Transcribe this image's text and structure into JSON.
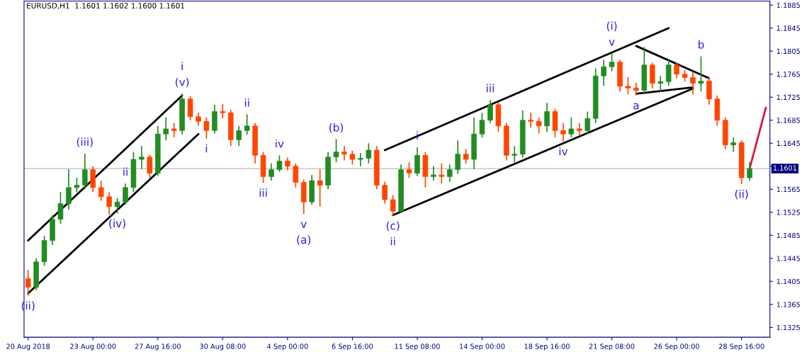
{
  "chart_data": {
    "type": "candlestick",
    "title": "EURUSD,H1  1.1601 1.1602 1.1600 1.1601",
    "categories": [
      "20 Aug 2018",
      null,
      null,
      null,
      null,
      null,
      null,
      null,
      "23 Aug 00:00",
      null,
      null,
      null,
      null,
      null,
      null,
      null,
      "27 Aug 16:00",
      null,
      null,
      null,
      null,
      null,
      null,
      null,
      "30 Aug 08:00",
      null,
      null,
      null,
      null,
      null,
      null,
      null,
      "4 Sep 00:00",
      null,
      null,
      null,
      null,
      null,
      null,
      null,
      "6 Sep 16:00",
      null,
      null,
      null,
      null,
      null,
      null,
      null,
      "11 Sep 08:00",
      null,
      null,
      null,
      null,
      null,
      null,
      null,
      "14 Sep 00:00",
      null,
      null,
      null,
      null,
      null,
      null,
      null,
      "18 Sep 16:00",
      null,
      null,
      null,
      null,
      null,
      null,
      null,
      "21 Sep 08:00",
      null,
      null,
      null,
      null,
      null,
      null,
      null,
      "26 Sep 00:00",
      null,
      null,
      null,
      null,
      null,
      null,
      null,
      "28 Sep 16:00",
      null,
      null,
      null
    ],
    "ohlc": [
      [
        1.141,
        1.1425,
        1.138,
        1.1395
      ],
      [
        1.1395,
        1.1445,
        1.139,
        1.1439
      ],
      [
        1.1439,
        1.1484,
        1.1432,
        1.1476
      ],
      [
        1.1476,
        1.152,
        1.1468,
        1.1513
      ],
      [
        1.1513,
        1.156,
        1.1505,
        1.154
      ],
      [
        1.154,
        1.16,
        1.153,
        1.1568
      ],
      [
        1.1568,
        1.1585,
        1.156,
        1.1572
      ],
      [
        1.1572,
        1.1627,
        1.1565,
        1.1599
      ],
      [
        1.1599,
        1.1605,
        1.156,
        1.1568
      ],
      [
        1.1568,
        1.158,
        1.1545,
        1.1552
      ],
      [
        1.1552,
        1.156,
        1.1521,
        1.1535
      ],
      [
        1.1535,
        1.155,
        1.1523,
        1.1543
      ],
      [
        1.1543,
        1.1575,
        1.1538,
        1.1568
      ],
      [
        1.1568,
        1.163,
        1.156,
        1.1617
      ],
      [
        1.1617,
        1.164,
        1.16,
        1.1621
      ],
      [
        1.1621,
        1.1625,
        1.1585,
        1.1593
      ],
      [
        1.1593,
        1.1675,
        1.1588,
        1.1661
      ],
      [
        1.1661,
        1.169,
        1.165,
        1.167
      ],
      [
        1.167,
        1.168,
        1.1655,
        1.1667
      ],
      [
        1.1667,
        1.1731,
        1.166,
        1.1722
      ],
      [
        1.1722,
        1.1727,
        1.1685,
        1.1691
      ],
      [
        1.1691,
        1.1698,
        1.1675,
        1.1683
      ],
      [
        1.1683,
        1.169,
        1.1653,
        1.1667
      ],
      [
        1.1667,
        1.1712,
        1.1662,
        1.17
      ],
      [
        1.17,
        1.1713,
        1.1688,
        1.1698
      ],
      [
        1.1698,
        1.1703,
        1.164,
        1.1651
      ],
      [
        1.1651,
        1.1675,
        1.164,
        1.1667
      ],
      [
        1.1667,
        1.1695,
        1.166,
        1.1675
      ],
      [
        1.1675,
        1.168,
        1.161,
        1.1624
      ],
      [
        1.1624,
        1.163,
        1.1576,
        1.1587
      ],
      [
        1.1587,
        1.161,
        1.158,
        1.1599
      ],
      [
        1.1599,
        1.1624,
        1.1595,
        1.1614
      ],
      [
        1.1614,
        1.162,
        1.1598,
        1.1605
      ],
      [
        1.1605,
        1.161,
        1.1568,
        1.1577
      ],
      [
        1.1577,
        1.1582,
        1.1522,
        1.1543
      ],
      [
        1.1543,
        1.159,
        1.1538,
        1.158
      ],
      [
        1.158,
        1.16,
        1.1535,
        1.1572
      ],
      [
        1.1572,
        1.163,
        1.1565,
        1.1621
      ],
      [
        1.1621,
        1.1652,
        1.1612,
        1.163
      ],
      [
        1.163,
        1.164,
        1.1615,
        1.1626
      ],
      [
        1.1626,
        1.1632,
        1.1608,
        1.1617
      ],
      [
        1.1617,
        1.1628,
        1.1605,
        1.1619
      ],
      [
        1.1619,
        1.1645,
        1.161,
        1.1633
      ],
      [
        1.1633,
        1.164,
        1.1565,
        1.1572
      ],
      [
        1.1572,
        1.1578,
        1.154,
        1.1547
      ],
      [
        1.1547,
        1.1555,
        1.1519,
        1.1527
      ],
      [
        1.1527,
        1.1608,
        1.1524,
        1.1599
      ],
      [
        1.1599,
        1.1612,
        1.1585,
        1.1593
      ],
      [
        1.1593,
        1.1638,
        1.1588,
        1.1624
      ],
      [
        1.1624,
        1.163,
        1.1568,
        1.1587
      ],
      [
        1.1587,
        1.1605,
        1.158,
        1.159
      ],
      [
        1.159,
        1.161,
        1.1575,
        1.1587
      ],
      [
        1.1587,
        1.1608,
        1.1578,
        1.1599
      ],
      [
        1.1599,
        1.165,
        1.1592,
        1.1626
      ],
      [
        1.1626,
        1.1635,
        1.161,
        1.1617
      ],
      [
        1.1617,
        1.169,
        1.16,
        1.1661
      ],
      [
        1.1661,
        1.1698,
        1.1655,
        1.1685
      ],
      [
        1.1685,
        1.172,
        1.168,
        1.1712
      ],
      [
        1.1712,
        1.1716,
        1.1665,
        1.1675
      ],
      [
        1.1675,
        1.168,
        1.1615,
        1.1624
      ],
      [
        1.1624,
        1.164,
        1.1612,
        1.1626
      ],
      [
        1.1626,
        1.1702,
        1.162,
        1.1685
      ],
      [
        1.1685,
        1.1698,
        1.1672,
        1.1683
      ],
      [
        1.1683,
        1.169,
        1.1662,
        1.1675
      ],
      [
        1.1675,
        1.1715,
        1.1665,
        1.17
      ],
      [
        1.17,
        1.1705,
        1.1655,
        1.1667
      ],
      [
        1.1667,
        1.168,
        1.1648,
        1.1661
      ],
      [
        1.1661,
        1.169,
        1.1655,
        1.167
      ],
      [
        1.167,
        1.168,
        1.1658,
        1.1667
      ],
      [
        1.1667,
        1.17,
        1.1662,
        1.1688
      ],
      [
        1.1688,
        1.1775,
        1.168,
        1.1762
      ],
      [
        1.1762,
        1.179,
        1.1745,
        1.1778
      ],
      [
        1.1778,
        1.1801,
        1.177,
        1.1786
      ],
      [
        1.1786,
        1.179,
        1.1735,
        1.1744
      ],
      [
        1.1744,
        1.176,
        1.173,
        1.1741
      ],
      [
        1.1741,
        1.175,
        1.1728,
        1.1737
      ],
      [
        1.1737,
        1.1812,
        1.1732,
        1.1781
      ],
      [
        1.1781,
        1.1785,
        1.174,
        1.1749
      ],
      [
        1.1749,
        1.1762,
        1.1735,
        1.1752
      ],
      [
        1.1752,
        1.1792,
        1.1745,
        1.1781
      ],
      [
        1.1781,
        1.1785,
        1.1758,
        1.1765
      ],
      [
        1.1765,
        1.1772,
        1.1752,
        1.1759
      ],
      [
        1.1759,
        1.1768,
        1.173,
        1.1749
      ],
      [
        1.1749,
        1.1796,
        1.1735,
        1.1753
      ],
      [
        1.1753,
        1.176,
        1.1712,
        1.1722
      ],
      [
        1.1722,
        1.1728,
        1.1675,
        1.1685
      ],
      [
        1.1685,
        1.169,
        1.1635,
        1.1642
      ],
      [
        1.1642,
        1.1655,
        1.163,
        1.1646
      ],
      [
        1.1646,
        1.165,
        1.1574,
        1.1585
      ],
      [
        1.1585,
        1.1612,
        1.158,
        1.1601
      ],
      null,
      null
    ],
    "colors": [
      "#ff4500",
      "#228b22",
      "#228b22",
      "#228b22",
      "#228b22",
      "#228b22",
      "#228b22",
      "#228b22",
      "#ff4500",
      "#ff4500",
      "#ff4500",
      "#228b22",
      "#228b22",
      "#228b22",
      "#228b22",
      "#ff4500",
      "#228b22",
      "#228b22",
      "#ff4500",
      "#228b22",
      "#ff4500",
      "#ff4500",
      "#ff4500",
      "#228b22",
      "#ff4500",
      "#ff4500",
      "#228b22",
      "#228b22",
      "#ff4500",
      "#ff4500",
      "#228b22",
      "#228b22",
      "#ff4500",
      "#ff4500",
      "#ff4500",
      "#228b22",
      "#ff4500",
      "#228b22",
      "#228b22",
      "#ff4500",
      "#ff4500",
      "#228b22",
      "#228b22",
      "#ff4500",
      "#ff4500",
      "#ff4500",
      "#228b22",
      "#ff4500",
      "#228b22",
      "#ff4500",
      "#228b22",
      "#ff4500",
      "#228b22",
      "#228b22",
      "#ff4500",
      "#228b22",
      "#228b22",
      "#228b22",
      "#ff4500",
      "#ff4500",
      "#228b22",
      "#228b22",
      "#ff4500",
      "#ff4500",
      "#228b22",
      "#ff4500",
      "#ff4500",
      "#228b22",
      "#ff4500",
      "#228b22",
      "#228b22",
      "#228b22",
      "#228b22",
      "#ff4500",
      "#ff4500",
      "#ff4500",
      "#228b22",
      "#ff4500",
      "#228b22",
      "#228b22",
      "#ff4500",
      "#ff4500",
      "#ff4500",
      "#228b22",
      "#ff4500",
      "#ff4500",
      "#ff4500",
      "#228b22",
      "#ff4500",
      "#228b22",
      null,
      null
    ],
    "series": [
      {
        "type": "line",
        "color": "#000000",
        "values": [
          1.1476,
          null,
          null,
          null,
          null,
          null,
          null,
          null,
          null,
          null,
          null,
          null,
          null,
          null,
          null,
          null,
          null,
          null,
          null,
          1.1728,
          null,
          null,
          null,
          null,
          null,
          null,
          null,
          null,
          null,
          null,
          null,
          null,
          null,
          null,
          null,
          null,
          null,
          null,
          null,
          null,
          null,
          null,
          null,
          null,
          null,
          null,
          null,
          null,
          null,
          null,
          null,
          null,
          null,
          null,
          null,
          null,
          null,
          null,
          null,
          null,
          null,
          null,
          null,
          null,
          null,
          null,
          null,
          null,
          null,
          null,
          null,
          null,
          null,
          null,
          null,
          null,
          null,
          null,
          null,
          null,
          null,
          null,
          null,
          null,
          null,
          null,
          null,
          null,
          null,
          null,
          null,
          null
        ]
      },
      {
        "type": "line",
        "color": "#000000",
        "values": [
          1.1384,
          null,
          null,
          null,
          null,
          null,
          null,
          null,
          null,
          null,
          null,
          null,
          null,
          null,
          null,
          null,
          null,
          null,
          null,
          null,
          null,
          1.1661,
          null,
          null,
          null,
          null,
          null,
          null,
          null,
          null,
          null,
          null,
          null,
          null,
          null,
          null,
          null,
          null,
          null,
          null,
          null,
          null,
          null,
          null,
          null,
          null,
          null,
          null,
          null,
          null,
          null,
          null,
          null,
          null,
          null,
          null,
          null,
          null,
          null,
          null,
          null,
          null,
          null,
          null,
          null,
          null,
          null,
          null,
          null,
          null,
          null,
          null,
          null,
          null,
          null,
          null,
          null,
          null,
          null,
          null,
          null,
          null,
          null,
          null,
          null,
          null,
          null,
          null,
          null,
          null,
          null,
          null
        ]
      },
      {
        "type": "line",
        "color": "#000000",
        "values": [
          null,
          null,
          null,
          null,
          null,
          null,
          null,
          null,
          null,
          null,
          null,
          null,
          null,
          null,
          null,
          null,
          null,
          null,
          null,
          null,
          null,
          null,
          null,
          null,
          null,
          null,
          null,
          null,
          null,
          null,
          null,
          null,
          null,
          null,
          null,
          null,
          null,
          null,
          null,
          null,
          null,
          null,
          null,
          null,
          1.1633,
          null,
          null,
          null,
          null,
          null,
          null,
          null,
          null,
          null,
          null,
          null,
          null,
          null,
          null,
          null,
          null,
          null,
          null,
          null,
          null,
          null,
          null,
          null,
          null,
          null,
          null,
          null,
          null,
          null,
          null,
          null,
          null,
          null,
          null,
          1.1845,
          null,
          null,
          null,
          null,
          null,
          null,
          null,
          null,
          null,
          null,
          null,
          null
        ]
      },
      {
        "type": "line",
        "color": "#000000",
        "values": [
          null,
          null,
          null,
          null,
          null,
          null,
          null,
          null,
          null,
          null,
          null,
          null,
          null,
          null,
          null,
          null,
          null,
          null,
          null,
          null,
          null,
          null,
          null,
          null,
          null,
          null,
          null,
          null,
          null,
          null,
          null,
          null,
          null,
          null,
          null,
          null,
          null,
          null,
          null,
          null,
          null,
          null,
          null,
          null,
          null,
          1.152,
          null,
          null,
          null,
          null,
          null,
          null,
          null,
          null,
          null,
          null,
          null,
          null,
          null,
          null,
          null,
          null,
          null,
          null,
          null,
          null,
          null,
          null,
          null,
          null,
          null,
          null,
          null,
          null,
          null,
          null,
          null,
          null,
          null,
          null,
          null,
          null,
          1.174,
          null,
          null,
          null,
          null,
          null,
          null,
          null,
          null,
          null
        ]
      },
      {
        "type": "line",
        "color": "#000000",
        "values": [
          null,
          null,
          null,
          null,
          null,
          null,
          null,
          null,
          null,
          null,
          null,
          null,
          null,
          null,
          null,
          null,
          null,
          null,
          null,
          null,
          null,
          null,
          null,
          null,
          null,
          null,
          null,
          null,
          null,
          null,
          null,
          null,
          null,
          null,
          null,
          null,
          null,
          null,
          null,
          null,
          null,
          null,
          null,
          null,
          null,
          null,
          null,
          null,
          null,
          null,
          null,
          null,
          null,
          null,
          null,
          null,
          null,
          null,
          null,
          null,
          null,
          null,
          null,
          null,
          null,
          null,
          null,
          null,
          null,
          null,
          null,
          null,
          null,
          null,
          null,
          1.1814,
          null,
          null,
          null,
          null,
          null,
          null,
          null,
          null,
          1.1758,
          null,
          null,
          null,
          null,
          null,
          null,
          null
        ]
      },
      {
        "type": "line",
        "color": "#000000",
        "values": [
          null,
          null,
          null,
          null,
          null,
          null,
          null,
          null,
          null,
          null,
          null,
          null,
          null,
          null,
          null,
          null,
          null,
          null,
          null,
          null,
          null,
          null,
          null,
          null,
          null,
          null,
          null,
          null,
          null,
          null,
          null,
          null,
          null,
          null,
          null,
          null,
          null,
          null,
          null,
          null,
          null,
          null,
          null,
          null,
          null,
          null,
          null,
          null,
          null,
          null,
          null,
          null,
          null,
          null,
          null,
          null,
          null,
          null,
          null,
          null,
          null,
          null,
          null,
          null,
          null,
          null,
          null,
          null,
          null,
          null,
          null,
          null,
          null,
          null,
          null,
          1.1731,
          null,
          null,
          null,
          null,
          null,
          null,
          1.1742,
          null,
          null,
          null,
          null,
          null,
          null,
          null,
          null,
          null
        ]
      },
      {
        "type": "line",
        "color": "#dc143c",
        "values": [
          null,
          null,
          null,
          null,
          null,
          null,
          null,
          null,
          null,
          null,
          null,
          null,
          null,
          null,
          null,
          null,
          null,
          null,
          null,
          null,
          null,
          null,
          null,
          null,
          null,
          null,
          null,
          null,
          null,
          null,
          null,
          null,
          null,
          null,
          null,
          null,
          null,
          null,
          null,
          null,
          null,
          null,
          null,
          null,
          null,
          null,
          null,
          null,
          null,
          null,
          null,
          null,
          null,
          null,
          null,
          null,
          null,
          null,
          null,
          null,
          null,
          null,
          null,
          null,
          null,
          null,
          null,
          null,
          null,
          null,
          null,
          null,
          null,
          null,
          null,
          null,
          null,
          null,
          null,
          null,
          null,
          null,
          null,
          null,
          null,
          null,
          null,
          null,
          null,
          1.1601,
          null,
          1.1707
        ]
      }
    ],
    "ref_lines": [
      {
        "axis": "y",
        "value": 1.1601,
        "label": "1.1601",
        "color": "#c8c8c8"
      }
    ],
    "annotations": [
      {
        "text": "(ii)",
        "y": 1.138
      },
      {
        "text": "(iii)",
        "y": 1.1627
      },
      {
        "text": "(iv)",
        "y": 1.1523
      },
      {
        "text": "(v)",
        "y": 1.1731
      },
      {
        "text": "i",
        "y": 1.1731
      },
      {
        "text": "i",
        "y": 1.1653
      },
      {
        "text": "ii",
        "y": 1.1695
      },
      {
        "text": "iii",
        "y": 1.1576
      },
      {
        "text": "iv",
        "y": 1.1624
      },
      {
        "text": "v",
        "y": 1.1522
      },
      {
        "text": "(a)",
        "y": 1.1522
      },
      {
        "text": "(b)",
        "y": 1.1652
      },
      {
        "text": "(c)",
        "y": 1.1519
      },
      {
        "text": "ii",
        "y": 1.1519
      },
      {
        "text": "i",
        "y": 1.1638
      },
      {
        "text": "ii",
        "y": 1.1575
      },
      {
        "text": "iii",
        "y": 1.172
      },
      {
        "text": "iv",
        "y": 1.1648
      },
      {
        "text": "v",
        "y": 1.1801
      },
      {
        "text": "(i)",
        "y": 1.1801
      },
      {
        "text": "a",
        "y": 1.1728
      },
      {
        "text": "b",
        "y": 1.1796
      },
      {
        "text": "(ii)",
        "y": 1.1574
      }
    ],
    "ylim": [
      1.1308,
      1.1892
    ],
    "yticks": [
      1.1325,
      1.1365,
      1.1405,
      1.1445,
      1.1485,
      1.1525,
      1.1565,
      {
        "value": 1.1605,
        "label": null
      },
      1.1645,
      1.1685,
      1.1725,
      1.1765,
      1.1805,
      1.1845,
      1.1885
    ],
    "grid": false,
    "legend": false
  }
}
